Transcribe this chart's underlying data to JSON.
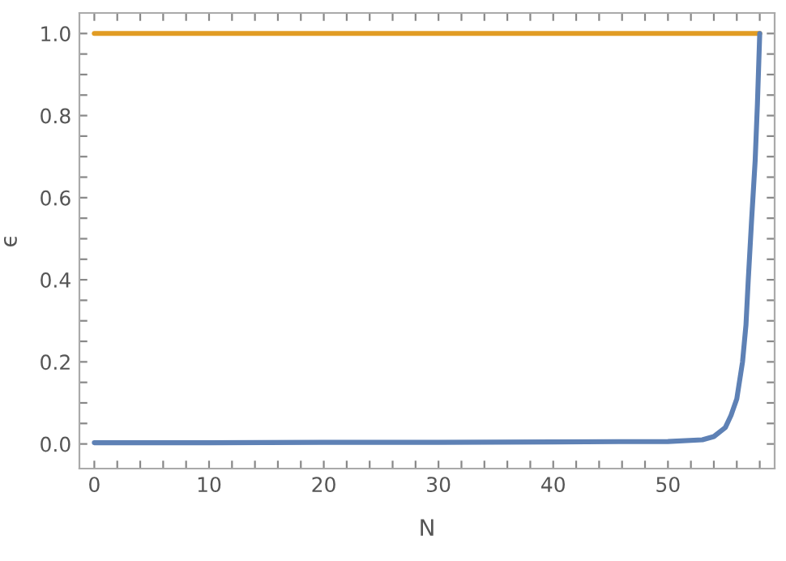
{
  "chart_data": {
    "type": "line",
    "xlabel": "N",
    "ylabel": "ϵ",
    "xlim": [
      -1.3,
      59.3
    ],
    "ylim": [
      -0.06,
      1.05
    ],
    "xticks": [
      0,
      {
        "value": 2,
        "label": null
      },
      {
        "value": 4,
        "label": null
      },
      {
        "value": 6,
        "label": null
      },
      {
        "value": 8,
        "label": null
      },
      10,
      {
        "value": 12,
        "label": null
      },
      {
        "value": 14,
        "label": null
      },
      {
        "value": 16,
        "label": null
      },
      {
        "value": 18,
        "label": null
      },
      20,
      {
        "value": 22,
        "label": null
      },
      {
        "value": 24,
        "label": null
      },
      {
        "value": 26,
        "label": null
      },
      {
        "value": 28,
        "label": null
      },
      30,
      {
        "value": 32,
        "label": null
      },
      {
        "value": 34,
        "label": null
      },
      {
        "value": 36,
        "label": null
      },
      {
        "value": 38,
        "label": null
      },
      40,
      {
        "value": 42,
        "label": null
      },
      {
        "value": 44,
        "label": null
      },
      {
        "value": 46,
        "label": null
      },
      {
        "value": 48,
        "label": null
      },
      50,
      {
        "value": 52,
        "label": null
      },
      {
        "value": 54,
        "label": null
      },
      {
        "value": 56,
        "label": null
      },
      {
        "value": 58,
        "label": null
      }
    ],
    "yticks": [
      {
        "value": 0,
        "label": "0.0"
      },
      {
        "value": 0.05,
        "label": null
      },
      {
        "value": 0.1,
        "label": null
      },
      {
        "value": 0.15,
        "label": null
      },
      {
        "value": 0.2,
        "label": "0.2"
      },
      {
        "value": 0.25,
        "label": null
      },
      {
        "value": 0.3,
        "label": null
      },
      {
        "value": 0.35,
        "label": null
      },
      {
        "value": 0.4,
        "label": "0.4"
      },
      {
        "value": 0.45,
        "label": null
      },
      {
        "value": 0.5,
        "label": null
      },
      {
        "value": 0.55,
        "label": null
      },
      {
        "value": 0.6,
        "label": "0.6"
      },
      {
        "value": 0.65,
        "label": null
      },
      {
        "value": 0.7,
        "label": null
      },
      {
        "value": 0.75,
        "label": null
      },
      {
        "value": 0.8,
        "label": "0.8"
      },
      {
        "value": 0.85,
        "label": null
      },
      {
        "value": 0.9,
        "label": null
      },
      {
        "value": 0.95,
        "label": null
      },
      {
        "value": 1.0,
        "label": "1.0"
      }
    ],
    "series": [
      {
        "color": "#e19c24",
        "x": [
          0,
          58
        ],
        "values": [
          1.0,
          1.0
        ]
      },
      {
        "color": "#5e81b5",
        "x": [
          0,
          10,
          20,
          30,
          40,
          50,
          53,
          54,
          55,
          55.5,
          56,
          56.5,
          56.8,
          57,
          57.3,
          57.6,
          57.8,
          58
        ],
        "values": [
          0.003,
          0.003,
          0.004,
          0.004,
          0.005,
          0.006,
          0.01,
          0.018,
          0.04,
          0.07,
          0.11,
          0.2,
          0.29,
          0.4,
          0.55,
          0.69,
          0.83,
          1.0
        ]
      }
    ]
  }
}
